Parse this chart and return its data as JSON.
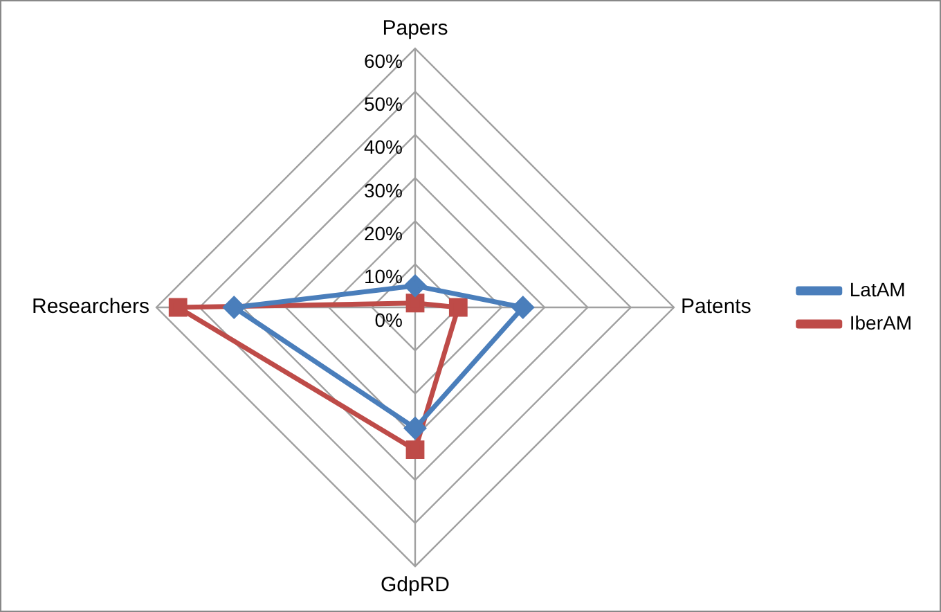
{
  "chart_data": {
    "type": "radar",
    "categories": [
      "Papers",
      "Patents",
      "GdpRD",
      "Researchers"
    ],
    "series": [
      {
        "name": "LatAM",
        "color": "#4a7ebb",
        "marker": "diamond",
        "values": [
          5,
          25,
          28,
          42
        ]
      },
      {
        "name": "IberAM",
        "color": "#be4b48",
        "marker": "square",
        "values": [
          1,
          10,
          33,
          55
        ]
      }
    ],
    "ylim": [
      0,
      60
    ],
    "yticks": [
      {
        "value": 0,
        "label": "0%"
      },
      {
        "value": 10,
        "label": "10%"
      },
      {
        "value": 20,
        "label": "20%"
      },
      {
        "value": 30,
        "label": "30%"
      },
      {
        "value": 40,
        "label": "40%"
      },
      {
        "value": 50,
        "label": "50%"
      },
      {
        "value": 60,
        "label": "60%"
      }
    ],
    "grid": true,
    "legend": "right",
    "line_style": "solid"
  }
}
